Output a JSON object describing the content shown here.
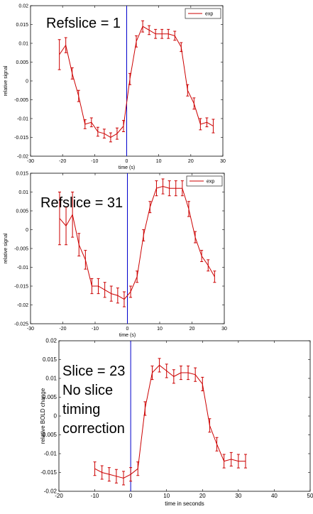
{
  "chart_data": [
    {
      "type": "line",
      "xlabel": "time (s)",
      "ylabel": "relative signal",
      "annotation": [
        "Refslice = 1"
      ],
      "xlim": [
        -30,
        30
      ],
      "xticks": [
        -30,
        -20,
        -10,
        0,
        10,
        20,
        30
      ],
      "ylim": [
        -0.02,
        0.02
      ],
      "yticks": [
        -0.02,
        -0.015,
        -0.01,
        -0.005,
        0,
        0.005,
        0.01,
        0.015,
        0.02
      ],
      "vlines": [
        0
      ],
      "vline_color": "#0000cc",
      "legend": "upper right",
      "grid": false,
      "x": [
        -21,
        -19,
        -17,
        -15,
        -13,
        -11,
        -9,
        -7,
        -5,
        -3,
        -1,
        1,
        3,
        5,
        7,
        9,
        11,
        13,
        15,
        17,
        19,
        21,
        23,
        25,
        27
      ],
      "series": [
        {
          "name": "exp",
          "color": "#cc0000",
          "values": [
            0.007,
            0.0095,
            0.002,
            -0.004,
            -0.0115,
            -0.011,
            -0.0135,
            -0.014,
            -0.015,
            -0.014,
            -0.012,
            0.0005,
            0.0105,
            0.0145,
            0.0135,
            0.0125,
            0.0125,
            0.0125,
            0.012,
            0.009,
            -0.0025,
            -0.006,
            -0.0115,
            -0.011,
            -0.012
          ],
          "errors": [
            0.004,
            0.002,
            0.0015,
            0.0015,
            0.0012,
            0.0012,
            0.0012,
            0.0012,
            0.0012,
            0.0015,
            0.0015,
            0.0015,
            0.0015,
            0.0015,
            0.0012,
            0.0012,
            0.0012,
            0.0012,
            0.0012,
            0.0012,
            0.0015,
            0.0015,
            0.0015,
            0.0012,
            0.0018
          ]
        }
      ]
    },
    {
      "type": "line",
      "xlabel": "time (s)",
      "ylabel": "relative signal",
      "annotation": [
        "Refslice = 31"
      ],
      "xlim": [
        -30,
        30
      ],
      "xticks": [
        -30,
        -20,
        -10,
        0,
        10,
        20,
        30
      ],
      "ylim": [
        -0.025,
        0.015
      ],
      "yticks": [
        -0.025,
        -0.02,
        -0.015,
        -0.01,
        -0.005,
        0,
        0.005,
        0.01,
        0.015
      ],
      "vlines": [
        0
      ],
      "vline_color": "#0000cc",
      "legend": "upper right",
      "grid": false,
      "x": [
        -21,
        -19,
        -17,
        -15,
        -13,
        -11,
        -9,
        -7,
        -5,
        -3,
        -1,
        1,
        3,
        5,
        7,
        9,
        11,
        13,
        15,
        17,
        19,
        21,
        23,
        25,
        27
      ],
      "series": [
        {
          "name": "exp",
          "color": "#cc0000",
          "values": [
            0.003,
            0.001,
            0.004,
            -0.004,
            -0.008,
            -0.015,
            -0.015,
            -0.016,
            -0.017,
            -0.0175,
            -0.0185,
            -0.0165,
            -0.0125,
            -0.0015,
            0.006,
            0.011,
            0.0115,
            0.011,
            0.011,
            0.011,
            0.0055,
            -0.002,
            -0.007,
            -0.0095,
            -0.0125
          ],
          "errors": [
            0.007,
            0.005,
            0.006,
            0.003,
            0.0025,
            0.002,
            0.002,
            0.002,
            0.002,
            0.002,
            0.002,
            0.0015,
            0.0015,
            0.0015,
            0.0015,
            0.002,
            0.002,
            0.002,
            0.002,
            0.002,
            0.002,
            0.0015,
            0.0015,
            0.0015,
            0.0015
          ]
        }
      ]
    },
    {
      "type": "line",
      "xlabel": "time in seconds",
      "ylabel": "relative BOLD change",
      "annotation": [
        "Slice = 23",
        "No slice",
        "timing",
        "correction"
      ],
      "xlim": [
        -20,
        50
      ],
      "xticks": [
        -20,
        -10,
        0,
        10,
        20,
        30,
        40,
        50
      ],
      "ylim": [
        -0.02,
        0.02
      ],
      "yticks": [
        -0.02,
        -0.015,
        -0.01,
        -0.005,
        0,
        0.005,
        0.01,
        0.015,
        0.02
      ],
      "vlines": [
        0
      ],
      "vline_color": "#0000cc",
      "grid": false,
      "x": [
        -10,
        -8,
        -6,
        -4,
        -2,
        0,
        2,
        4,
        6,
        8,
        10,
        12,
        14,
        16,
        18,
        20,
        22,
        24,
        26,
        28,
        30,
        32
      ],
      "series": [
        {
          "color": "#cc0000",
          "values": [
            -0.014,
            -0.015,
            -0.0155,
            -0.016,
            -0.0165,
            -0.0155,
            -0.014,
            0.002,
            0.0115,
            0.0135,
            0.012,
            0.0105,
            0.0115,
            0.0115,
            0.011,
            0.0085,
            -0.0025,
            -0.0075,
            -0.012,
            -0.0115,
            -0.012,
            -0.012
          ],
          "errors": [
            0.0018,
            0.0018,
            0.0018,
            0.0018,
            0.0018,
            0.0018,
            0.0018,
            0.0018,
            0.0018,
            0.0018,
            0.0018,
            0.0018,
            0.0018,
            0.0018,
            0.0018,
            0.0018,
            0.0018,
            0.0018,
            0.0018,
            0.0018,
            0.0018,
            0.0018
          ]
        }
      ]
    }
  ]
}
